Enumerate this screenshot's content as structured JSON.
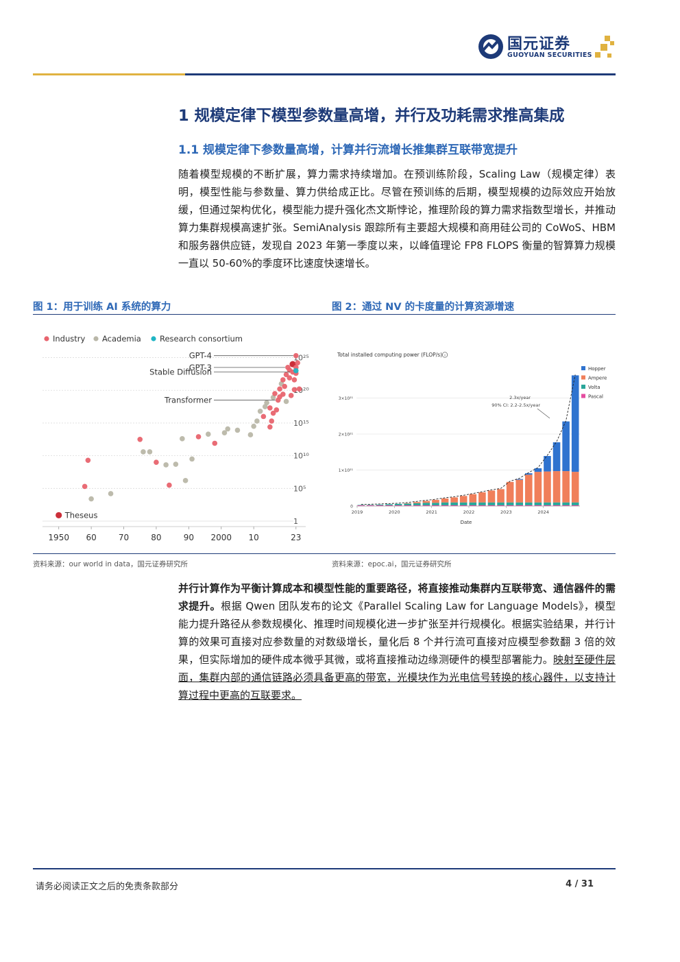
{
  "header": {
    "logo_name": "国元证券",
    "logo_sub": "GUOYUAN SECURITIES",
    "brand_color": "#1d3a78",
    "accent_color": "#e0b240"
  },
  "section": {
    "h1": "1 规模定律下模型参数量高增，并行及功耗需求推高集成",
    "h2": "1.1 规模定律下参数量高增，计算并行流增长推集群互联带宽提升"
  },
  "paragraph1": "随着模型规模的不断扩展，算力需求持续增加。在预训练阶段，Scaling Law（规模定律）表明，模型性能与参数量、算力供给成正比。尽管在预训练的后期，模型规模的边际效应开始放缓，但通过架构优化，模型能力提升强化杰文斯悖论，推理阶段的算力需求指数型增长，并推动算力集群规模高速扩张。SemiAnalysis 跟踪所有主要超大规模和商用硅公司的 CoWoS、HBM 和服务器供应链，发现自 2023 年第一季度以来，以峰值理论 FP8 FLOPS 衡量的智算算力规模一直以 50-60%的季度环比速度快速增长。",
  "figure1": {
    "title": "图 1：用于训练 AI 系统的算力",
    "source": "资料来源：our world in data，国元证券研究所"
  },
  "figure2": {
    "title": "图 2：通过 NV 的卡度量的计算资源增速",
    "source": "资料来源：epoc.ai，国元证券研究所"
  },
  "paragraph2": {
    "bold": "并行计算作为平衡计算成本和模型性能的重要路径，将直接推动集群内互联带宽、通信器件的需求提升。",
    "normal": "根据 Qwen 团队发布的论文《Parallel Scaling Law for Language Models》，模型能力提升路径从参数规模化、推理时间规模化进一步扩张至并行规模化。根据实验结果，并行计算的效果可直接对应参数量的对数级增长，量化后 8 个并行流可直接对应模型参数翻 3 倍的效果，但实际增加的硬件成本微乎其微，或将直接推动边缘测硬件的模型部署能力。",
    "underlined": "映射至硬件层面，集群内部的通信链路必须具备更高的带宽，光模块作为光电信号转换的核心器件，以支持计算过程中更高的互联要求。"
  },
  "footer": {
    "disclaimer": "请务必阅读正文之后的免责条款部分",
    "page": "4 / 31"
  },
  "chart_data": [
    {
      "type": "scatter",
      "x_ticks": [
        "1950",
        "60",
        "70",
        "80",
        "90",
        "2000",
        "10",
        "23"
      ],
      "x_range": [
        1945,
        2026
      ],
      "y_tick_labels": [
        "1",
        "10⁵",
        "10¹⁰",
        "10¹⁵",
        "10²⁰",
        "10²⁵"
      ],
      "y_range": [
        0,
        26
      ],
      "y_scale": "log10",
      "legend": [
        {
          "name": "Industry",
          "color": "#e8646e"
        },
        {
          "name": "Academia",
          "color": "#b9b7a8"
        },
        {
          "name": "Research consortium",
          "color": "#1fb5c4"
        }
      ],
      "legend_position": "top-left",
      "annotations": [
        {
          "label": "GPT-4",
          "x": 2023,
          "y": 25.3
        },
        {
          "label": "GPT-3",
          "x": 2020.5,
          "y": 23.5
        },
        {
          "label": "Stable Diffusion",
          "x": 2022,
          "y": 22.8
        },
        {
          "label": "Transformer",
          "x": 2017.5,
          "y": 18.5
        },
        {
          "label": "Theseus",
          "x": 1950,
          "y": 0.9
        }
      ],
      "points": [
        {
          "x": 1950,
          "y": 0.9,
          "g": "highlight"
        },
        {
          "x": 1959,
          "y": 9.3,
          "g": "Industry"
        },
        {
          "x": 1958,
          "y": 5.3,
          "g": "Industry"
        },
        {
          "x": 1960,
          "y": 3.4,
          "g": "Academia"
        },
        {
          "x": 1966,
          "y": 4.2,
          "g": "Academia"
        },
        {
          "x": 1975,
          "y": 12.5,
          "g": "Industry"
        },
        {
          "x": 1976,
          "y": 10.6,
          "g": "Academia"
        },
        {
          "x": 1978,
          "y": 10.6,
          "g": "Academia"
        },
        {
          "x": 1980,
          "y": 9.0,
          "g": "Industry"
        },
        {
          "x": 1983,
          "y": 8.6,
          "g": "Academia"
        },
        {
          "x": 1986,
          "y": 8.7,
          "g": "Academia"
        },
        {
          "x": 1984,
          "y": 5.5,
          "g": "Industry"
        },
        {
          "x": 1988,
          "y": 12.6,
          "g": "Academia"
        },
        {
          "x": 1989,
          "y": 6.2,
          "g": "Academia"
        },
        {
          "x": 1991,
          "y": 9.5,
          "g": "Academia"
        },
        {
          "x": 1993,
          "y": 12.9,
          "g": "Industry"
        },
        {
          "x": 1996,
          "y": 13.3,
          "g": "Academia"
        },
        {
          "x": 1998,
          "y": 11.9,
          "g": "Industry"
        },
        {
          "x": 2001,
          "y": 13.5,
          "g": "Academia"
        },
        {
          "x": 2002,
          "y": 14.1,
          "g": "Academia"
        },
        {
          "x": 2005,
          "y": 13.9,
          "g": "Academia"
        },
        {
          "x": 2009,
          "y": 13.2,
          "g": "Academia"
        },
        {
          "x": 2010,
          "y": 14.5,
          "g": "Academia"
        },
        {
          "x": 2011,
          "y": 15.3,
          "g": "Academia"
        },
        {
          "x": 2012,
          "y": 16.8,
          "g": "Academia"
        },
        {
          "x": 2013,
          "y": 16.0,
          "g": "Industry"
        },
        {
          "x": 2013.5,
          "y": 17.5,
          "g": "Academia"
        },
        {
          "x": 2014,
          "y": 18.1,
          "g": "Academia"
        },
        {
          "x": 2015,
          "y": 17.3,
          "g": "Industry"
        },
        {
          "x": 2015,
          "y": 14.4,
          "g": "Industry"
        },
        {
          "x": 2015.5,
          "y": 15.3,
          "g": "Industry"
        },
        {
          "x": 2016,
          "y": 16.5,
          "g": "Industry"
        },
        {
          "x": 2016,
          "y": 18.9,
          "g": "Academia"
        },
        {
          "x": 2016.5,
          "y": 19.5,
          "g": "Industry"
        },
        {
          "x": 2017,
          "y": 17.0,
          "g": "Industry"
        },
        {
          "x": 2017.5,
          "y": 18.5,
          "g": "Industry"
        },
        {
          "x": 2018,
          "y": 20.2,
          "g": "Industry"
        },
        {
          "x": 2018,
          "y": 19.0,
          "g": "Industry"
        },
        {
          "x": 2018.5,
          "y": 21.0,
          "g": "Academia"
        },
        {
          "x": 2019,
          "y": 21.6,
          "g": "Industry"
        },
        {
          "x": 2019,
          "y": 19.4,
          "g": "Industry"
        },
        {
          "x": 2019.5,
          "y": 20.6,
          "g": "Industry"
        },
        {
          "x": 2020,
          "y": 22.4,
          "g": "Industry"
        },
        {
          "x": 2020,
          "y": 18.3,
          "g": "Academia"
        },
        {
          "x": 2020.5,
          "y": 23.5,
          "g": "Industry"
        },
        {
          "x": 2021,
          "y": 21.9,
          "g": "Industry"
        },
        {
          "x": 2021,
          "y": 23.1,
          "g": "Industry"
        },
        {
          "x": 2021.5,
          "y": 19.2,
          "g": "Industry"
        },
        {
          "x": 2022,
          "y": 22.8,
          "g": "Industry"
        },
        {
          "x": 2022,
          "y": 24.0,
          "g": "highlight"
        },
        {
          "x": 2022.5,
          "y": 20.1,
          "g": "Industry"
        },
        {
          "x": 2022.5,
          "y": 21.6,
          "g": "Industry"
        },
        {
          "x": 2023,
          "y": 22.6,
          "g": "Industry"
        },
        {
          "x": 2023,
          "y": 23.5,
          "g": "Industry"
        },
        {
          "x": 2023,
          "y": 25.3,
          "g": "Industry"
        },
        {
          "x": 2023,
          "y": 23.0,
          "g": "Research consortium"
        },
        {
          "x": 2023.5,
          "y": 24.2,
          "g": "Industry"
        },
        {
          "x": 2024,
          "y": 20.2,
          "g": "Industry"
        }
      ]
    },
    {
      "type": "bar",
      "stacked": true,
      "title": "Total installed computing power (FLOP/s)",
      "xlabel": "Date",
      "y_unit": "×10²¹",
      "x_ticks": [
        "2019",
        "2020",
        "2021",
        "2022",
        "2023",
        "2024"
      ],
      "y_ticks": [
        "0",
        "1×10²¹",
        "2×10²¹",
        "3×10²¹"
      ],
      "ylim": [
        0,
        4
      ],
      "legend_position": "top-right",
      "annotation": {
        "line1": "2.3x/year",
        "line2": "90% CI: 2.2-2.5x/year"
      },
      "categories": [
        "2019Q1",
        "2019Q2",
        "2019Q3",
        "2019Q4",
        "2020Q1",
        "2020Q2",
        "2020Q3",
        "2020Q4",
        "2021Q1",
        "2021Q2",
        "2021Q3",
        "2021Q4",
        "2022Q1",
        "2022Q2",
        "2022Q3",
        "2022Q4",
        "2023Q1",
        "2023Q2",
        "2023Q3",
        "2023Q4",
        "2024Q1",
        "2024Q2",
        "2024Q3",
        "2024Q4"
      ],
      "series": [
        {
          "name": "Pascal",
          "color": "#e54da0",
          "values": [
            0.02,
            0.02,
            0.02,
            0.02,
            0.02,
            0.02,
            0.02,
            0.02,
            0.02,
            0.02,
            0.02,
            0.02,
            0.02,
            0.02,
            0.02,
            0.02,
            0.02,
            0.02,
            0.02,
            0.02,
            0.02,
            0.02,
            0.02,
            0.02
          ]
        },
        {
          "name": "Volta",
          "color": "#2aa69a",
          "values": [
            0.01,
            0.01,
            0.02,
            0.03,
            0.04,
            0.05,
            0.06,
            0.07,
            0.07,
            0.08,
            0.08,
            0.08,
            0.08,
            0.08,
            0.08,
            0.08,
            0.08,
            0.08,
            0.08,
            0.08,
            0.08,
            0.08,
            0.08,
            0.08
          ]
        },
        {
          "name": "Ampere",
          "color": "#f07f5a",
          "values": [
            0,
            0,
            0,
            0,
            0,
            0.01,
            0.03,
            0.05,
            0.08,
            0.11,
            0.14,
            0.18,
            0.23,
            0.28,
            0.33,
            0.37,
            0.57,
            0.63,
            0.77,
            0.85,
            0.86,
            0.87,
            0.87,
            0.85
          ]
        },
        {
          "name": "Hopper",
          "color": "#2f73cf",
          "values": [
            0,
            0,
            0,
            0,
            0,
            0,
            0,
            0,
            0,
            0,
            0,
            0,
            0,
            0,
            0,
            0,
            0,
            0.02,
            0.04,
            0.1,
            0.43,
            0.8,
            1.38,
            2.68
          ]
        }
      ]
    }
  ]
}
